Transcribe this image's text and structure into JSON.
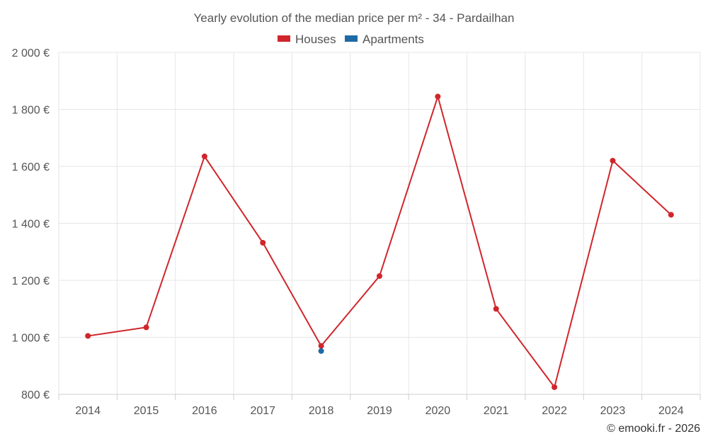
{
  "chart_data": {
    "type": "line",
    "title": "Yearly evolution of the median price per m² - 34 - Pardailhan",
    "categories": [
      "2014",
      "2015",
      "2016",
      "2017",
      "2018",
      "2019",
      "2020",
      "2021",
      "2022",
      "2023",
      "2024"
    ],
    "series": [
      {
        "name": "Houses",
        "color": "#d0262b",
        "values": [
          1005,
          1035,
          1635,
          1332,
          970,
          1215,
          1845,
          1100,
          825,
          1620,
          1430
        ]
      },
      {
        "name": "Apartments",
        "color": "#1f6aa5",
        "values": [
          null,
          null,
          null,
          null,
          952,
          null,
          null,
          null,
          null,
          null,
          null
        ]
      }
    ],
    "ylim": [
      800,
      2000
    ],
    "yticks": [
      800,
      1000,
      1200,
      1400,
      1600,
      1800,
      2000
    ],
    "ytick_labels": [
      "800 €",
      "1 000 €",
      "1 200 €",
      "1 400 €",
      "1 600 €",
      "1 800 €",
      "2 000 €"
    ],
    "xlabel": "",
    "ylabel": "",
    "legend_position": "top-center",
    "grid": true
  },
  "credit": "© emooki.fr - 2026"
}
